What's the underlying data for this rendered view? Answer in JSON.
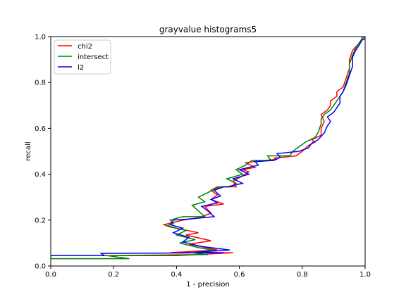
{
  "chart_data": {
    "type": "line",
    "title": "grayvalue histograms5",
    "xlabel": "1 - precision",
    "ylabel": "recall",
    "xlim": [
      0.0,
      1.0
    ],
    "ylim": [
      0.0,
      1.0
    ],
    "xticks": [
      "0.0",
      "0.2",
      "0.4",
      "0.6",
      "0.8",
      "1.0"
    ],
    "yticks": [
      "0.0",
      "0.2",
      "0.4",
      "0.6",
      "0.8",
      "1.0"
    ],
    "grid": false,
    "legend_position": "top-left",
    "series": [
      {
        "name": "chi2",
        "color": "#ff0000",
        "points": [
          [
            0.0,
            0.035
          ],
          [
            0.0,
            0.045
          ],
          [
            0.4,
            0.045
          ],
          [
            0.58,
            0.058
          ],
          [
            0.38,
            0.058
          ],
          [
            0.53,
            0.07
          ],
          [
            0.44,
            0.095
          ],
          [
            0.51,
            0.11
          ],
          [
            0.43,
            0.135
          ],
          [
            0.47,
            0.145
          ],
          [
            0.38,
            0.17
          ],
          [
            0.36,
            0.18
          ],
          [
            0.39,
            0.19
          ],
          [
            0.42,
            0.2
          ],
          [
            0.47,
            0.21
          ],
          [
            0.51,
            0.23
          ],
          [
            0.49,
            0.26
          ],
          [
            0.55,
            0.27
          ],
          [
            0.51,
            0.29
          ],
          [
            0.53,
            0.31
          ],
          [
            0.51,
            0.33
          ],
          [
            0.53,
            0.345
          ],
          [
            0.59,
            0.345
          ],
          [
            0.58,
            0.37
          ],
          [
            0.6,
            0.385
          ],
          [
            0.63,
            0.41
          ],
          [
            0.61,
            0.42
          ],
          [
            0.65,
            0.43
          ],
          [
            0.62,
            0.45
          ],
          [
            0.68,
            0.46
          ],
          [
            0.72,
            0.465
          ],
          [
            0.71,
            0.47
          ],
          [
            0.78,
            0.48
          ],
          [
            0.8,
            0.5
          ],
          [
            0.82,
            0.525
          ],
          [
            0.84,
            0.54
          ],
          [
            0.83,
            0.55
          ],
          [
            0.86,
            0.57
          ],
          [
            0.86,
            0.6
          ],
          [
            0.87,
            0.63
          ],
          [
            0.86,
            0.66
          ],
          [
            0.88,
            0.68
          ],
          [
            0.89,
            0.7
          ],
          [
            0.89,
            0.72
          ],
          [
            0.91,
            0.74
          ],
          [
            0.91,
            0.76
          ],
          [
            0.93,
            0.78
          ],
          [
            0.94,
            0.82
          ],
          [
            0.95,
            0.86
          ],
          [
            0.95,
            0.9
          ],
          [
            0.96,
            0.94
          ],
          [
            0.98,
            0.97
          ],
          [
            0.99,
            0.99
          ],
          [
            0.99,
            1.0
          ]
        ]
      },
      {
        "name": "intersect",
        "color": "#008000",
        "points": [
          [
            0.0,
            0.032
          ],
          [
            0.25,
            0.032
          ],
          [
            0.18,
            0.045
          ],
          [
            0.5,
            0.05
          ],
          [
            0.45,
            0.058
          ],
          [
            0.52,
            0.068
          ],
          [
            0.47,
            0.08
          ],
          [
            0.41,
            0.1
          ],
          [
            0.46,
            0.115
          ],
          [
            0.4,
            0.135
          ],
          [
            0.43,
            0.155
          ],
          [
            0.37,
            0.175
          ],
          [
            0.39,
            0.185
          ],
          [
            0.38,
            0.2
          ],
          [
            0.42,
            0.215
          ],
          [
            0.49,
            0.215
          ],
          [
            0.47,
            0.24
          ],
          [
            0.45,
            0.265
          ],
          [
            0.49,
            0.28
          ],
          [
            0.47,
            0.3
          ],
          [
            0.5,
            0.32
          ],
          [
            0.52,
            0.335
          ],
          [
            0.54,
            0.345
          ],
          [
            0.57,
            0.345
          ],
          [
            0.59,
            0.36
          ],
          [
            0.56,
            0.38
          ],
          [
            0.61,
            0.4
          ],
          [
            0.59,
            0.42
          ],
          [
            0.62,
            0.44
          ],
          [
            0.64,
            0.46
          ],
          [
            0.7,
            0.46
          ],
          [
            0.69,
            0.48
          ],
          [
            0.76,
            0.48
          ],
          [
            0.77,
            0.5
          ],
          [
            0.79,
            0.52
          ],
          [
            0.81,
            0.54
          ],
          [
            0.84,
            0.56
          ],
          [
            0.85,
            0.58
          ],
          [
            0.86,
            0.62
          ],
          [
            0.86,
            0.64
          ],
          [
            0.87,
            0.66
          ],
          [
            0.89,
            0.68
          ],
          [
            0.9,
            0.7
          ],
          [
            0.91,
            0.72
          ],
          [
            0.92,
            0.74
          ],
          [
            0.93,
            0.76
          ],
          [
            0.94,
            0.8
          ],
          [
            0.95,
            0.84
          ],
          [
            0.95,
            0.88
          ],
          [
            0.96,
            0.92
          ],
          [
            0.97,
            0.95
          ],
          [
            0.98,
            0.97
          ],
          [
            0.99,
            0.99
          ],
          [
            1.0,
            1.0
          ]
        ]
      },
      {
        "name": "l2",
        "color": "#0000ff",
        "points": [
          [
            0.0,
            0.045
          ],
          [
            0.17,
            0.045
          ],
          [
            0.16,
            0.055
          ],
          [
            0.55,
            0.058
          ],
          [
            0.46,
            0.06
          ],
          [
            0.57,
            0.07
          ],
          [
            0.48,
            0.085
          ],
          [
            0.42,
            0.105
          ],
          [
            0.44,
            0.125
          ],
          [
            0.39,
            0.145
          ],
          [
            0.42,
            0.165
          ],
          [
            0.38,
            0.18
          ],
          [
            0.39,
            0.2
          ],
          [
            0.44,
            0.205
          ],
          [
            0.52,
            0.215
          ],
          [
            0.5,
            0.24
          ],
          [
            0.48,
            0.26
          ],
          [
            0.53,
            0.275
          ],
          [
            0.51,
            0.29
          ],
          [
            0.54,
            0.305
          ],
          [
            0.52,
            0.33
          ],
          [
            0.55,
            0.345
          ],
          [
            0.56,
            0.345
          ],
          [
            0.61,
            0.36
          ],
          [
            0.58,
            0.38
          ],
          [
            0.63,
            0.4
          ],
          [
            0.6,
            0.42
          ],
          [
            0.66,
            0.44
          ],
          [
            0.65,
            0.455
          ],
          [
            0.71,
            0.46
          ],
          [
            0.73,
            0.475
          ],
          [
            0.72,
            0.49
          ],
          [
            0.79,
            0.5
          ],
          [
            0.82,
            0.515
          ],
          [
            0.83,
            0.535
          ],
          [
            0.85,
            0.55
          ],
          [
            0.87,
            0.58
          ],
          [
            0.88,
            0.61
          ],
          [
            0.89,
            0.63
          ],
          [
            0.88,
            0.65
          ],
          [
            0.9,
            0.67
          ],
          [
            0.91,
            0.69
          ],
          [
            0.92,
            0.71
          ],
          [
            0.92,
            0.74
          ],
          [
            0.93,
            0.76
          ],
          [
            0.94,
            0.79
          ],
          [
            0.95,
            0.83
          ],
          [
            0.96,
            0.87
          ],
          [
            0.96,
            0.91
          ],
          [
            0.97,
            0.94
          ],
          [
            0.98,
            0.96
          ],
          [
            0.99,
            0.985
          ],
          [
            1.0,
            0.99
          ],
          [
            1.0,
            1.0
          ]
        ]
      }
    ]
  }
}
